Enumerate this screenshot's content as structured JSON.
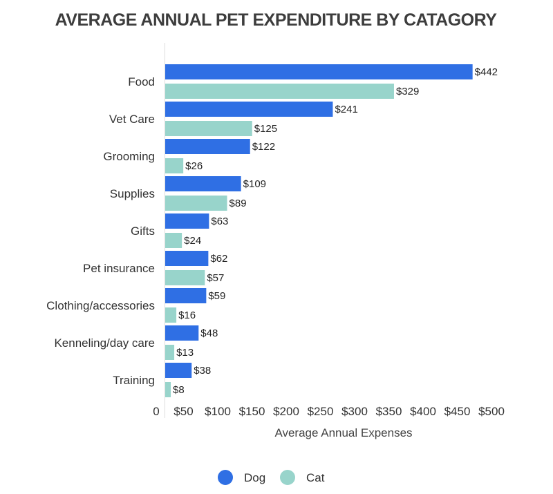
{
  "chart_data": {
    "type": "bar",
    "orientation": "horizontal",
    "title": "AVERAGE ANNUAL PET EXPENDITURE BY CATAGORY",
    "xlabel": "Average Annual Expenses",
    "ylabel": "",
    "xlim": [
      0,
      500
    ],
    "x_ticks": [
      "0",
      "$50",
      "$100",
      "$150",
      "$200",
      "$250",
      "$300",
      "$350",
      "$400",
      "$450",
      "$500"
    ],
    "categories": [
      "Food",
      "Vet Care",
      "Grooming",
      "Supplies",
      "Gifts",
      "Pet insurance",
      "Clothing/accessories",
      "Kenneling/day care",
      "Training"
    ],
    "series": [
      {
        "name": "Dog",
        "color": "#2f6fe4",
        "values": [
          442,
          241,
          122,
          109,
          63,
          62,
          59,
          48,
          38
        ]
      },
      {
        "name": "Cat",
        "color": "#98d4cb",
        "values": [
          329,
          125,
          26,
          89,
          24,
          57,
          16,
          13,
          8
        ]
      }
    ],
    "data_label_prefix": "$",
    "legend_position": "bottom",
    "grid": false
  }
}
